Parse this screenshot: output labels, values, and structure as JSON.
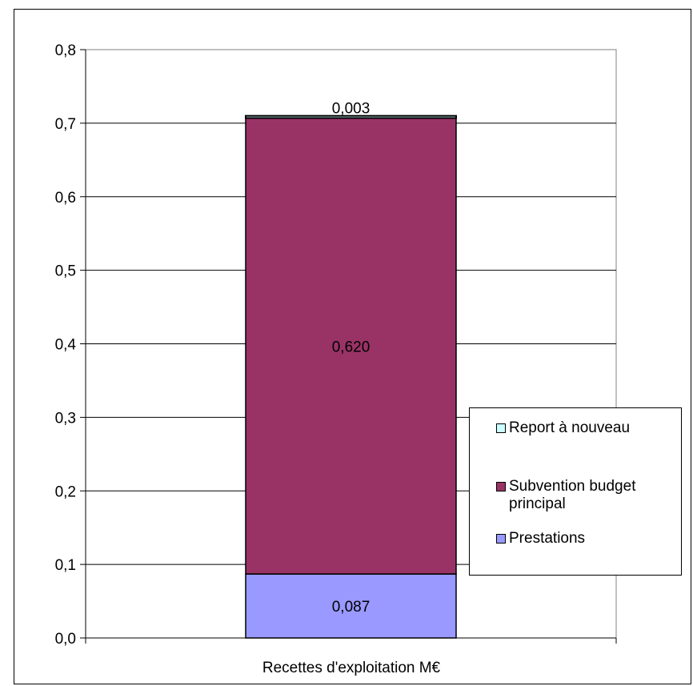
{
  "chart_data": {
    "type": "bar",
    "stacked": true,
    "categories": [
      "Recettes d'exploitation  M€"
    ],
    "series": [
      {
        "name": "Prestations",
        "values": [
          0.087
        ],
        "label": "0,087",
        "color": "#9999ff"
      },
      {
        "name": "Subvention budget principal",
        "values": [
          0.62
        ],
        "label": "0,620",
        "color": "#993366"
      },
      {
        "name": "Report à nouveau",
        "values": [
          0.003
        ],
        "label": "0,003",
        "color": "#ccffff"
      }
    ],
    "ylim": [
      0,
      0.8
    ],
    "yticks": [
      0,
      0.1,
      0.2,
      0.3,
      0.4,
      0.5,
      0.6,
      0.7,
      0.8
    ],
    "ytick_labels": [
      "0,0",
      "0,1",
      "0,2",
      "0,3",
      "0,4",
      "0,5",
      "0,6",
      "0,7",
      "0,8"
    ],
    "grid": true,
    "legend_position": "right",
    "legend": [
      {
        "label": "Report à nouveau",
        "color": "#ccffff"
      },
      {
        "label": "Subvention budget principal",
        "color": "#993366"
      },
      {
        "label": "Prestations",
        "color": "#9999ff"
      }
    ]
  }
}
